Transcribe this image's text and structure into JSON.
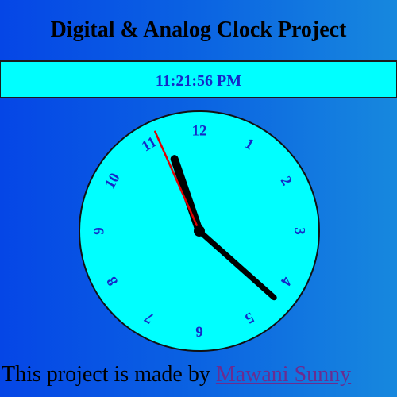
{
  "page": {
    "title": "Digital & Analog Clock Project"
  },
  "digital_clock": {
    "time": "11:21:56 PM"
  },
  "analog_clock": {
    "face_color": "#00ffff",
    "numeral_color": "#1428c8",
    "hand_color": "#000000",
    "second_hand_color": "#e00000",
    "numerals": [
      "12",
      "1",
      "2",
      "3",
      "4",
      "5",
      "6",
      "7",
      "8",
      "9",
      "10",
      "11"
    ],
    "time": {
      "hours": 11,
      "minutes": 21,
      "seconds": 56
    }
  },
  "footer": {
    "prefix": "This project is made by ",
    "author_link": "Mawani Sunny"
  }
}
